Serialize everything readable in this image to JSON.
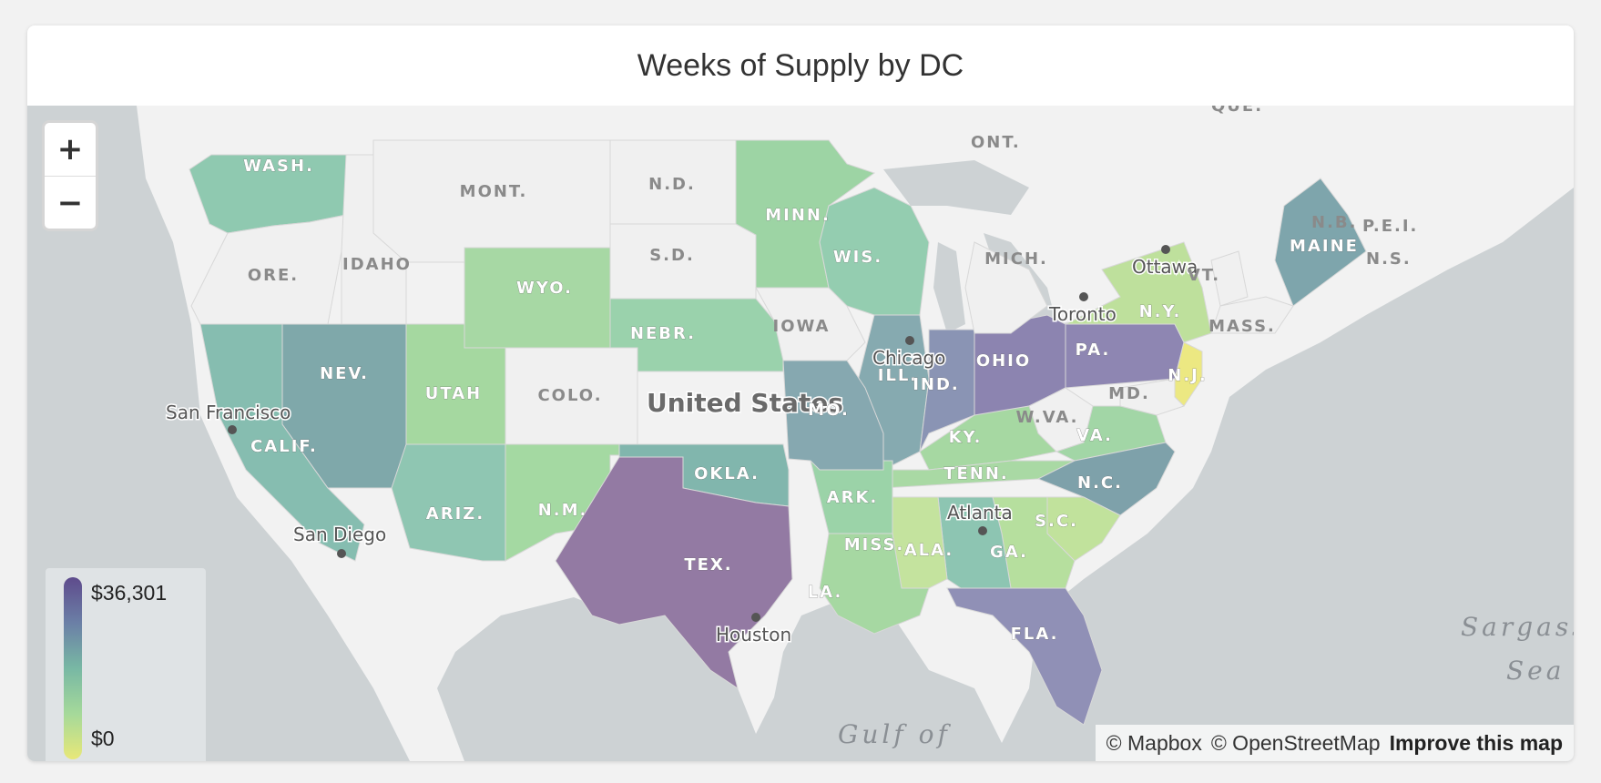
{
  "title": "Weeks of Supply by DC",
  "zoom": {
    "in_label": "+",
    "out_label": "−"
  },
  "legend": {
    "max_label": "$36,301",
    "min_label": "$0",
    "colors": [
      "#5e4b8c",
      "#6b7fa6",
      "#78b8a4",
      "#a5d99a",
      "#e8e878"
    ]
  },
  "attribution": {
    "mapbox": "© Mapbox",
    "osm": "© OpenStreetMap",
    "improve": "Improve this map"
  },
  "country_label": "United States",
  "water_labels": {
    "gulf": "Gulf of",
    "sargasso_1": "Sargass",
    "sargasso_2": "Sea"
  },
  "canada_labels": {
    "ont": "ONT.",
    "que": "QUÉ.",
    "nb": "N.B.",
    "pei": "P.E.I.",
    "ns": "N.S."
  },
  "cities": {
    "san_francisco": "San Francisco",
    "san_diego": "San Diego",
    "houston": "Houston",
    "chicago": "Chicago",
    "atlanta": "Atlanta",
    "toronto": "Toronto",
    "ottawa": "Ottawa"
  },
  "states": [
    {
      "label": "WASH.",
      "color": "#8fc9b0"
    },
    {
      "label": "ORE.",
      "color": "#f0f0f0"
    },
    {
      "label": "CALIF.",
      "color": "#86bdb0"
    },
    {
      "label": "NEV.",
      "color": "#7fa8aa"
    },
    {
      "label": "IDAHO",
      "color": "#f0f0f0"
    },
    {
      "label": "MONT.",
      "color": "#f0f0f0"
    },
    {
      "label": "WYO.",
      "color": "#a7d8a4"
    },
    {
      "label": "UTAH",
      "color": "#a5d8a0"
    },
    {
      "label": "ARIZ.",
      "color": "#8fc6b2"
    },
    {
      "label": "COLO.",
      "color": "#f0f0f0"
    },
    {
      "label": "N.M.",
      "color": "#a4d9a2"
    },
    {
      "label": "N.D.",
      "color": "#f0f0f0"
    },
    {
      "label": "S.D.",
      "color": "#f0f0f0"
    },
    {
      "label": "NEBR.",
      "color": "#9ad2ac"
    },
    {
      "label": "OKLA.",
      "color": "#81b6ad"
    },
    {
      "label": "TEX.",
      "color": "#937aa3"
    },
    {
      "label": "MINN.",
      "color": "#9dd4a4"
    },
    {
      "label": "IOWA",
      "color": "#f0f0f0"
    },
    {
      "label": "WIS.",
      "color": "#94cdb0"
    },
    {
      "label": "ILL.",
      "color": "#86aab0"
    },
    {
      "label": "IND.",
      "color": "#8a94b4"
    },
    {
      "label": "OHIO",
      "color": "#8c84b0"
    },
    {
      "label": "PA.",
      "color": "#8e86b2"
    },
    {
      "label": "N.Y.",
      "color": "#bee09c"
    },
    {
      "label": "N.J.",
      "color": "#ece882"
    },
    {
      "label": "MD.",
      "color": "#f0f0f0"
    },
    {
      "label": "W.VA.",
      "color": "#f0f0f0"
    },
    {
      "label": "VA.",
      "color": "#a2d6a6"
    },
    {
      "label": "KY.",
      "color": "#a6d8a2"
    },
    {
      "label": "TENN.",
      "color": "#a9d9a4"
    },
    {
      "label": "N.C.",
      "color": "#7ea1aa"
    },
    {
      "label": "S.C.",
      "color": "#c1e29c"
    },
    {
      "label": "GA.",
      "color": "#b6df9e"
    },
    {
      "label": "ALA.",
      "color": "#8dc5b2"
    },
    {
      "label": "MISS.",
      "color": "#c4e39e"
    },
    {
      "label": "LA.",
      "color": "#a6d8a2"
    },
    {
      "label": "ARK.",
      "color": "#9bd3a8"
    },
    {
      "label": "FLA.",
      "color": "#9090b6"
    },
    {
      "label": "MO.",
      "color": "#86a8b0"
    },
    {
      "label": "MICH.",
      "color": "#f0f0f0"
    },
    {
      "label": "MAINE",
      "color": "#7ea5ac"
    },
    {
      "label": "VT.",
      "color": "#f0f0f0"
    },
    {
      "label": "MASS.",
      "color": "#f0f0f0"
    }
  ]
}
